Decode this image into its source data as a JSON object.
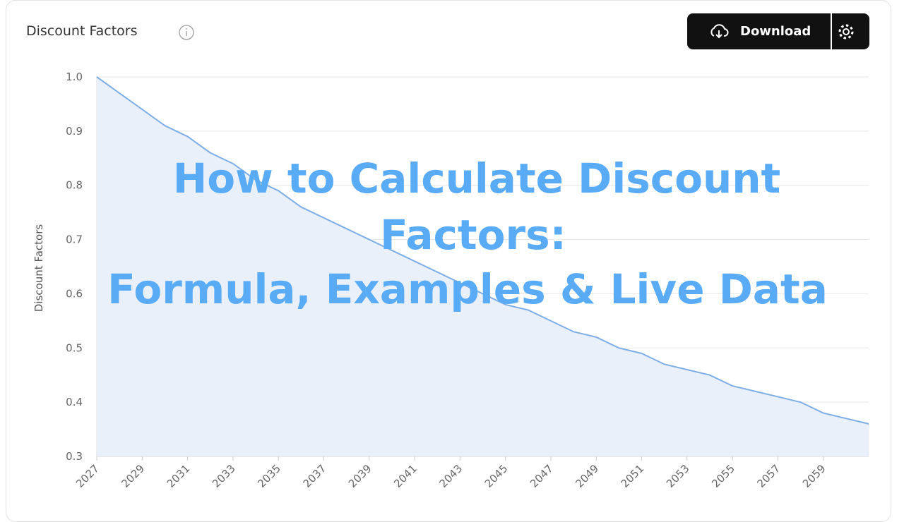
{
  "header": {
    "title": "Discount Factors",
    "button": "Download"
  },
  "overlay": {
    "lines": [
      "How to Calculate Discount",
      "Factors:",
      "Formula, Examples & Live Data"
    ]
  },
  "chart_data": {
    "type": "area",
    "y_label": "Discount Factors",
    "color": "#7eaee6",
    "fill": "#eaf0fa",
    "grid": true,
    "x": [
      2027,
      2028,
      2029,
      2030,
      2031,
      2032,
      2033,
      2034,
      2035,
      2036,
      2037,
      2038,
      2039,
      2040,
      2041,
      2042,
      2043,
      2044,
      2045,
      2046,
      2047,
      2048,
      2049,
      2050,
      2051,
      2052,
      2053,
      2054,
      2055,
      2056,
      2057,
      2058,
      2059,
      2060,
      2061
    ],
    "values": [
      1.0,
      0.97,
      0.94,
      0.91,
      0.89,
      0.86,
      0.84,
      0.81,
      0.79,
      0.76,
      0.74,
      0.72,
      0.7,
      0.68,
      0.66,
      0.64,
      0.62,
      0.6,
      0.58,
      0.57,
      0.55,
      0.53,
      0.52,
      0.5,
      0.49,
      0.47,
      0.46,
      0.45,
      0.43,
      0.42,
      0.41,
      0.4,
      0.38,
      0.37,
      0.36
    ],
    "xlim": [
      2027,
      2061
    ],
    "xticks": [
      2027,
      2029,
      2031,
      2033,
      2035,
      2037,
      2039,
      2041,
      2043,
      2045,
      2047,
      2049,
      2051,
      2053,
      2055,
      2057,
      2059
    ],
    "ylim": [
      0.3,
      1.0
    ],
    "yticks": [
      0.3,
      0.4,
      0.5,
      0.6,
      0.7,
      0.8,
      0.9,
      {
        "value": 1,
        "label": "1.0"
      }
    ]
  }
}
